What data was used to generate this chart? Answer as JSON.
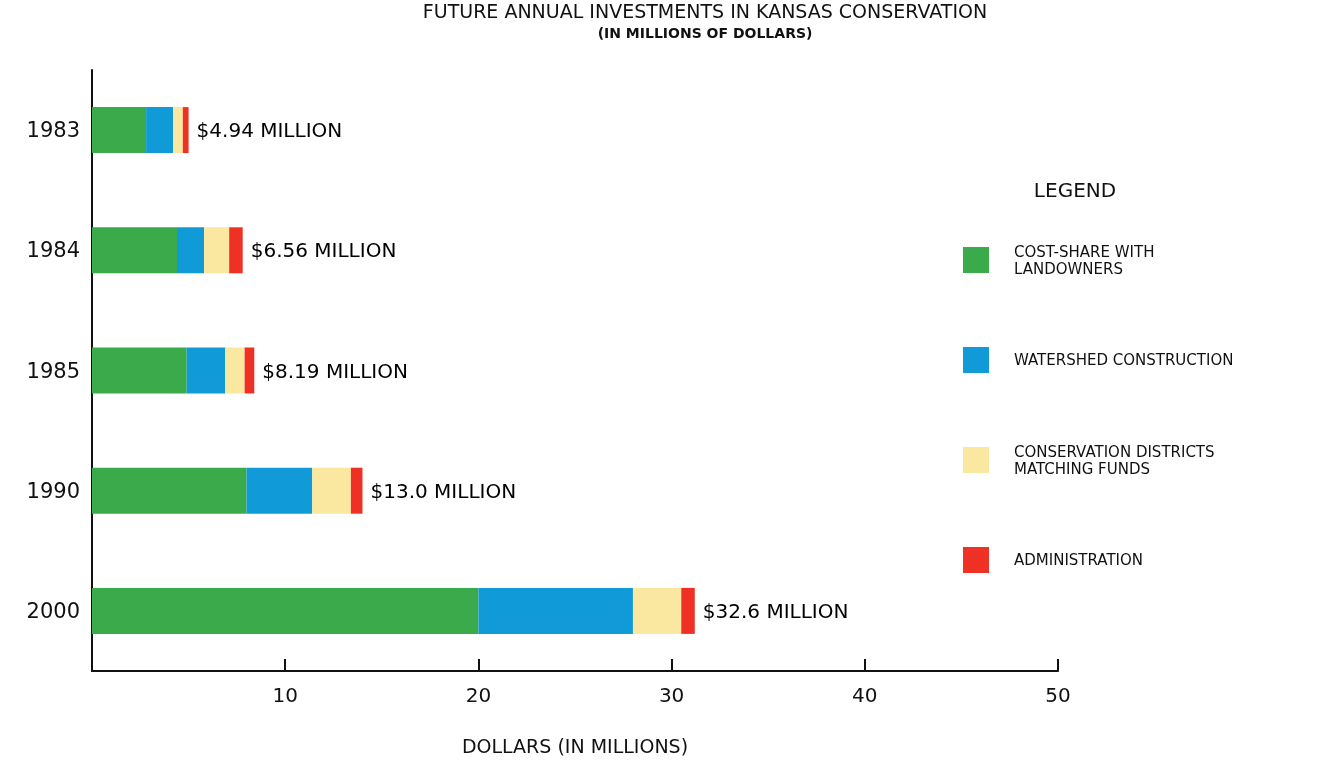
{
  "chart_data": {
    "type": "bar",
    "orientation": "horizontal",
    "stacked": true,
    "title": "FUTURE ANNUAL INVESTMENTS IN KANSAS CONSERVATION",
    "subtitle": "(IN MILLIONS OF DOLLARS)",
    "xlabel": "DOLLARS (IN MILLIONS)",
    "legend_title": "LEGEND",
    "categories": [
      "1983",
      "1984",
      "1985",
      "1990",
      "2000"
    ],
    "series": [
      {
        "name": "COST-SHARE WITH LANDOWNERS",
        "color": "#3aaa4a",
        "values": [
          2.8,
          4.4,
          4.9,
          8.0,
          20.0
        ]
      },
      {
        "name": "WATERSHED CONSTRUCTION",
        "color": "#119ad8",
        "values": [
          1.4,
          1.4,
          2.0,
          3.4,
          8.0
        ]
      },
      {
        "name": "CONSERVATION DISTRICTS MATCHING FUNDS",
        "color": "#fbe8a0",
        "values": [
          0.5,
          1.3,
          1.0,
          2.0,
          2.5
        ]
      },
      {
        "name": "ADMINISTRATION",
        "color": "#ee3124",
        "values": [
          0.3,
          0.7,
          0.5,
          0.6,
          0.7
        ]
      }
    ],
    "annotations": [
      {
        "text": "$4.94 MILLION",
        "x": 5.0,
        "y": "1983"
      },
      {
        "text": "$6.56 MILLION",
        "x": 7.8,
        "y": "1984"
      },
      {
        "text": "$8.19 MILLION",
        "x": 8.4,
        "y": "1985"
      },
      {
        "text": "$13.0 MILLION",
        "x": 14.0,
        "y": "1990"
      },
      {
        "text": "$32.6 MILLION",
        "x": 31.2,
        "y": "2000"
      }
    ],
    "xlim": [
      0,
      50
    ],
    "xticks": [
      10,
      20,
      30,
      40,
      50
    ],
    "grid": false,
    "legend": "right"
  }
}
